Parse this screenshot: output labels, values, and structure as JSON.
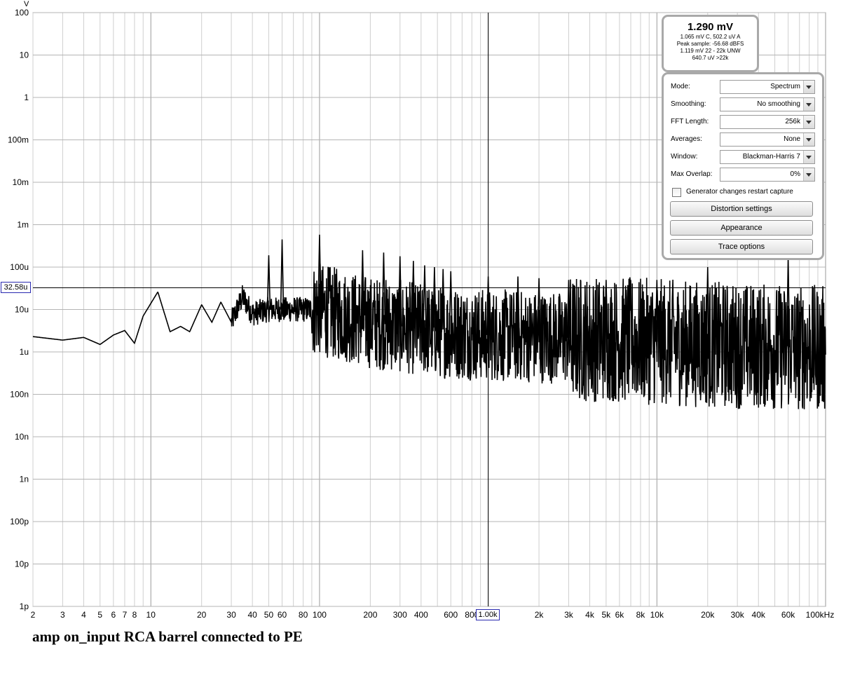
{
  "chart_data": {
    "type": "line",
    "title": "",
    "xlabel": "",
    "ylabel": "",
    "x_scale": "log",
    "y_scale": "log",
    "xlim": [
      2,
      100000
    ],
    "ylim": [
      "1p",
      "100"
    ],
    "grid": true,
    "y_unit_label": "V",
    "x_unit_label": "kHz",
    "x_ticks": [
      "2",
      "3",
      "4",
      "5",
      "6",
      "7",
      "8",
      "10",
      "20",
      "30",
      "40",
      "50",
      "60",
      "80",
      "100",
      "200",
      "300",
      "400",
      "600",
      "800",
      "1.00k",
      "2k",
      "3k",
      "4k",
      "5k",
      "6k",
      "8k",
      "10k",
      "20k",
      "30k",
      "40k",
      "60k",
      "100kHz"
    ],
    "y_ticks": [
      "100",
      "10",
      "1",
      "100m",
      "10m",
      "1m",
      "100u",
      "10u",
      "1u",
      "100n",
      "10n",
      "1n",
      "100p",
      "10p",
      "1p"
    ],
    "cursor": {
      "x_readout": "1.00k",
      "y_readout": "32.58u"
    },
    "series": [
      {
        "name": "",
        "baseline_points": [
          [
            2,
            2.3e-06
          ],
          [
            3,
            1.9e-06
          ],
          [
            4,
            2.2e-06
          ],
          [
            5,
            1.5e-06
          ],
          [
            6,
            2.5e-06
          ],
          [
            7,
            3.2e-06
          ],
          [
            8,
            1.6e-06
          ],
          [
            9,
            7e-06
          ],
          [
            11,
            2.6e-05
          ],
          [
            13,
            3e-06
          ],
          [
            15,
            4e-06
          ],
          [
            17,
            3e-06
          ],
          [
            20,
            1.3e-05
          ],
          [
            23,
            5e-06
          ],
          [
            26,
            1.5e-05
          ],
          [
            30,
            5e-06
          ],
          [
            35,
            2e-05
          ],
          [
            40,
            8e-06
          ],
          [
            50,
            1e-05
          ],
          [
            70,
            1e-05
          ],
          [
            100,
            1e-05
          ],
          [
            200,
            5e-06
          ],
          [
            500,
            3e-06
          ],
          [
            1000,
            2.5e-06
          ],
          [
            5000,
            2e-06
          ],
          [
            20000,
            1.5e-06
          ],
          [
            100000,
            1.2e-06
          ]
        ],
        "peaks": [
          [
            50,
            0.00019
          ],
          [
            60,
            0.00045
          ],
          [
            100,
            0.00058
          ],
          [
            180,
            0.00025
          ],
          [
            240,
            0.00022
          ],
          [
            300,
            0.00018
          ],
          [
            360,
            0.00014
          ],
          [
            420,
            0.00011
          ],
          [
            480,
            0.0001
          ],
          [
            540,
            9e-05
          ],
          [
            600,
            8e-05
          ],
          [
            1000,
            6e-05
          ],
          [
            1500,
            6e-05
          ],
          [
            2000,
            5.5e-05
          ],
          [
            3000,
            5e-05
          ],
          [
            5000,
            5e-05
          ],
          [
            10000,
            5e-05
          ],
          [
            20000,
            0.0001
          ],
          [
            60000,
            0.00018
          ]
        ],
        "color": "#000000"
      }
    ]
  },
  "readout": {
    "main": "1.290 mV",
    "line1": "1.065 mV C, 502.2 uV A",
    "line2": "Peak sample: -56.68 dBFS",
    "line3": "1.119 mV 22 - 22k UNW",
    "line4": "640.7 uV >22k"
  },
  "controls": {
    "mode_label": "Mode:",
    "mode_value": "Spectrum",
    "smoothing_label": "Smoothing:",
    "smoothing_value": "No  smoothing",
    "fft_label": "FFT Length:",
    "fft_value": "256k",
    "averages_label": "Averages:",
    "averages_value": "None",
    "window_label": "Window:",
    "window_value": "Blackman-Harris 7",
    "overlap_label": "Max Overlap:",
    "overlap_value": "0%",
    "generator_label": "Generator changes restart capture",
    "distortion_button": "Distortion settings",
    "appearance_button": "Appearance",
    "trace_button": "Trace options"
  },
  "caption": "amp on_input RCA barrel connected to PE"
}
